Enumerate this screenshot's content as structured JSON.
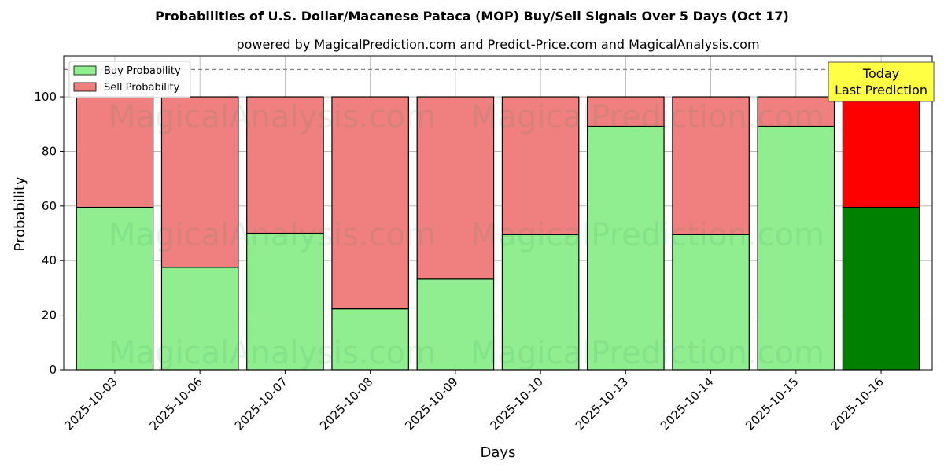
{
  "chart_data": {
    "type": "bar",
    "stacked": true,
    "title": "Probabilities of U.S. Dollar/Macanese Pataca (MOP) Buy/Sell Signals Over 5 Days (Oct 17)",
    "subtitle": "powered by MagicalPrediction.com and Predict-Price.com and MagicalAnalysis.com",
    "xlabel": "Days",
    "ylabel": "Probability",
    "ylim": [
      0,
      115
    ],
    "yticks": [
      0,
      20,
      40,
      60,
      80,
      100
    ],
    "categories": [
      "2025-10-03",
      "2025-10-06",
      "2025-10-07",
      "2025-10-08",
      "2025-10-09",
      "2025-10-10",
      "2025-10-13",
      "2025-10-14",
      "2025-10-15",
      "2025-10-16"
    ],
    "series": [
      {
        "name": "Buy Probability",
        "color": "#90ee90",
        "values": [
          59.5,
          37.5,
          50.0,
          22.3,
          33.2,
          49.5,
          89.2,
          49.5,
          89.2,
          59.5
        ]
      },
      {
        "name": "Sell Probability",
        "color": "#f08080",
        "values": [
          40.5,
          62.5,
          50.0,
          77.7,
          66.8,
          50.5,
          10.8,
          50.5,
          10.8,
          40.5
        ]
      }
    ],
    "highlight": {
      "index": 9,
      "buy_color": "#008000",
      "sell_color": "#ff0000",
      "annotation_lines": [
        "Today",
        "Last Prediction"
      ],
      "annotation_color": "#ffff44"
    },
    "reference_line": {
      "y": 110,
      "style": "dashed",
      "color": "#808080"
    },
    "grid": true,
    "legend_position": "top-left",
    "watermarks": [
      "MagicalAnalysis.com",
      "MagicalPrediction.com"
    ]
  }
}
